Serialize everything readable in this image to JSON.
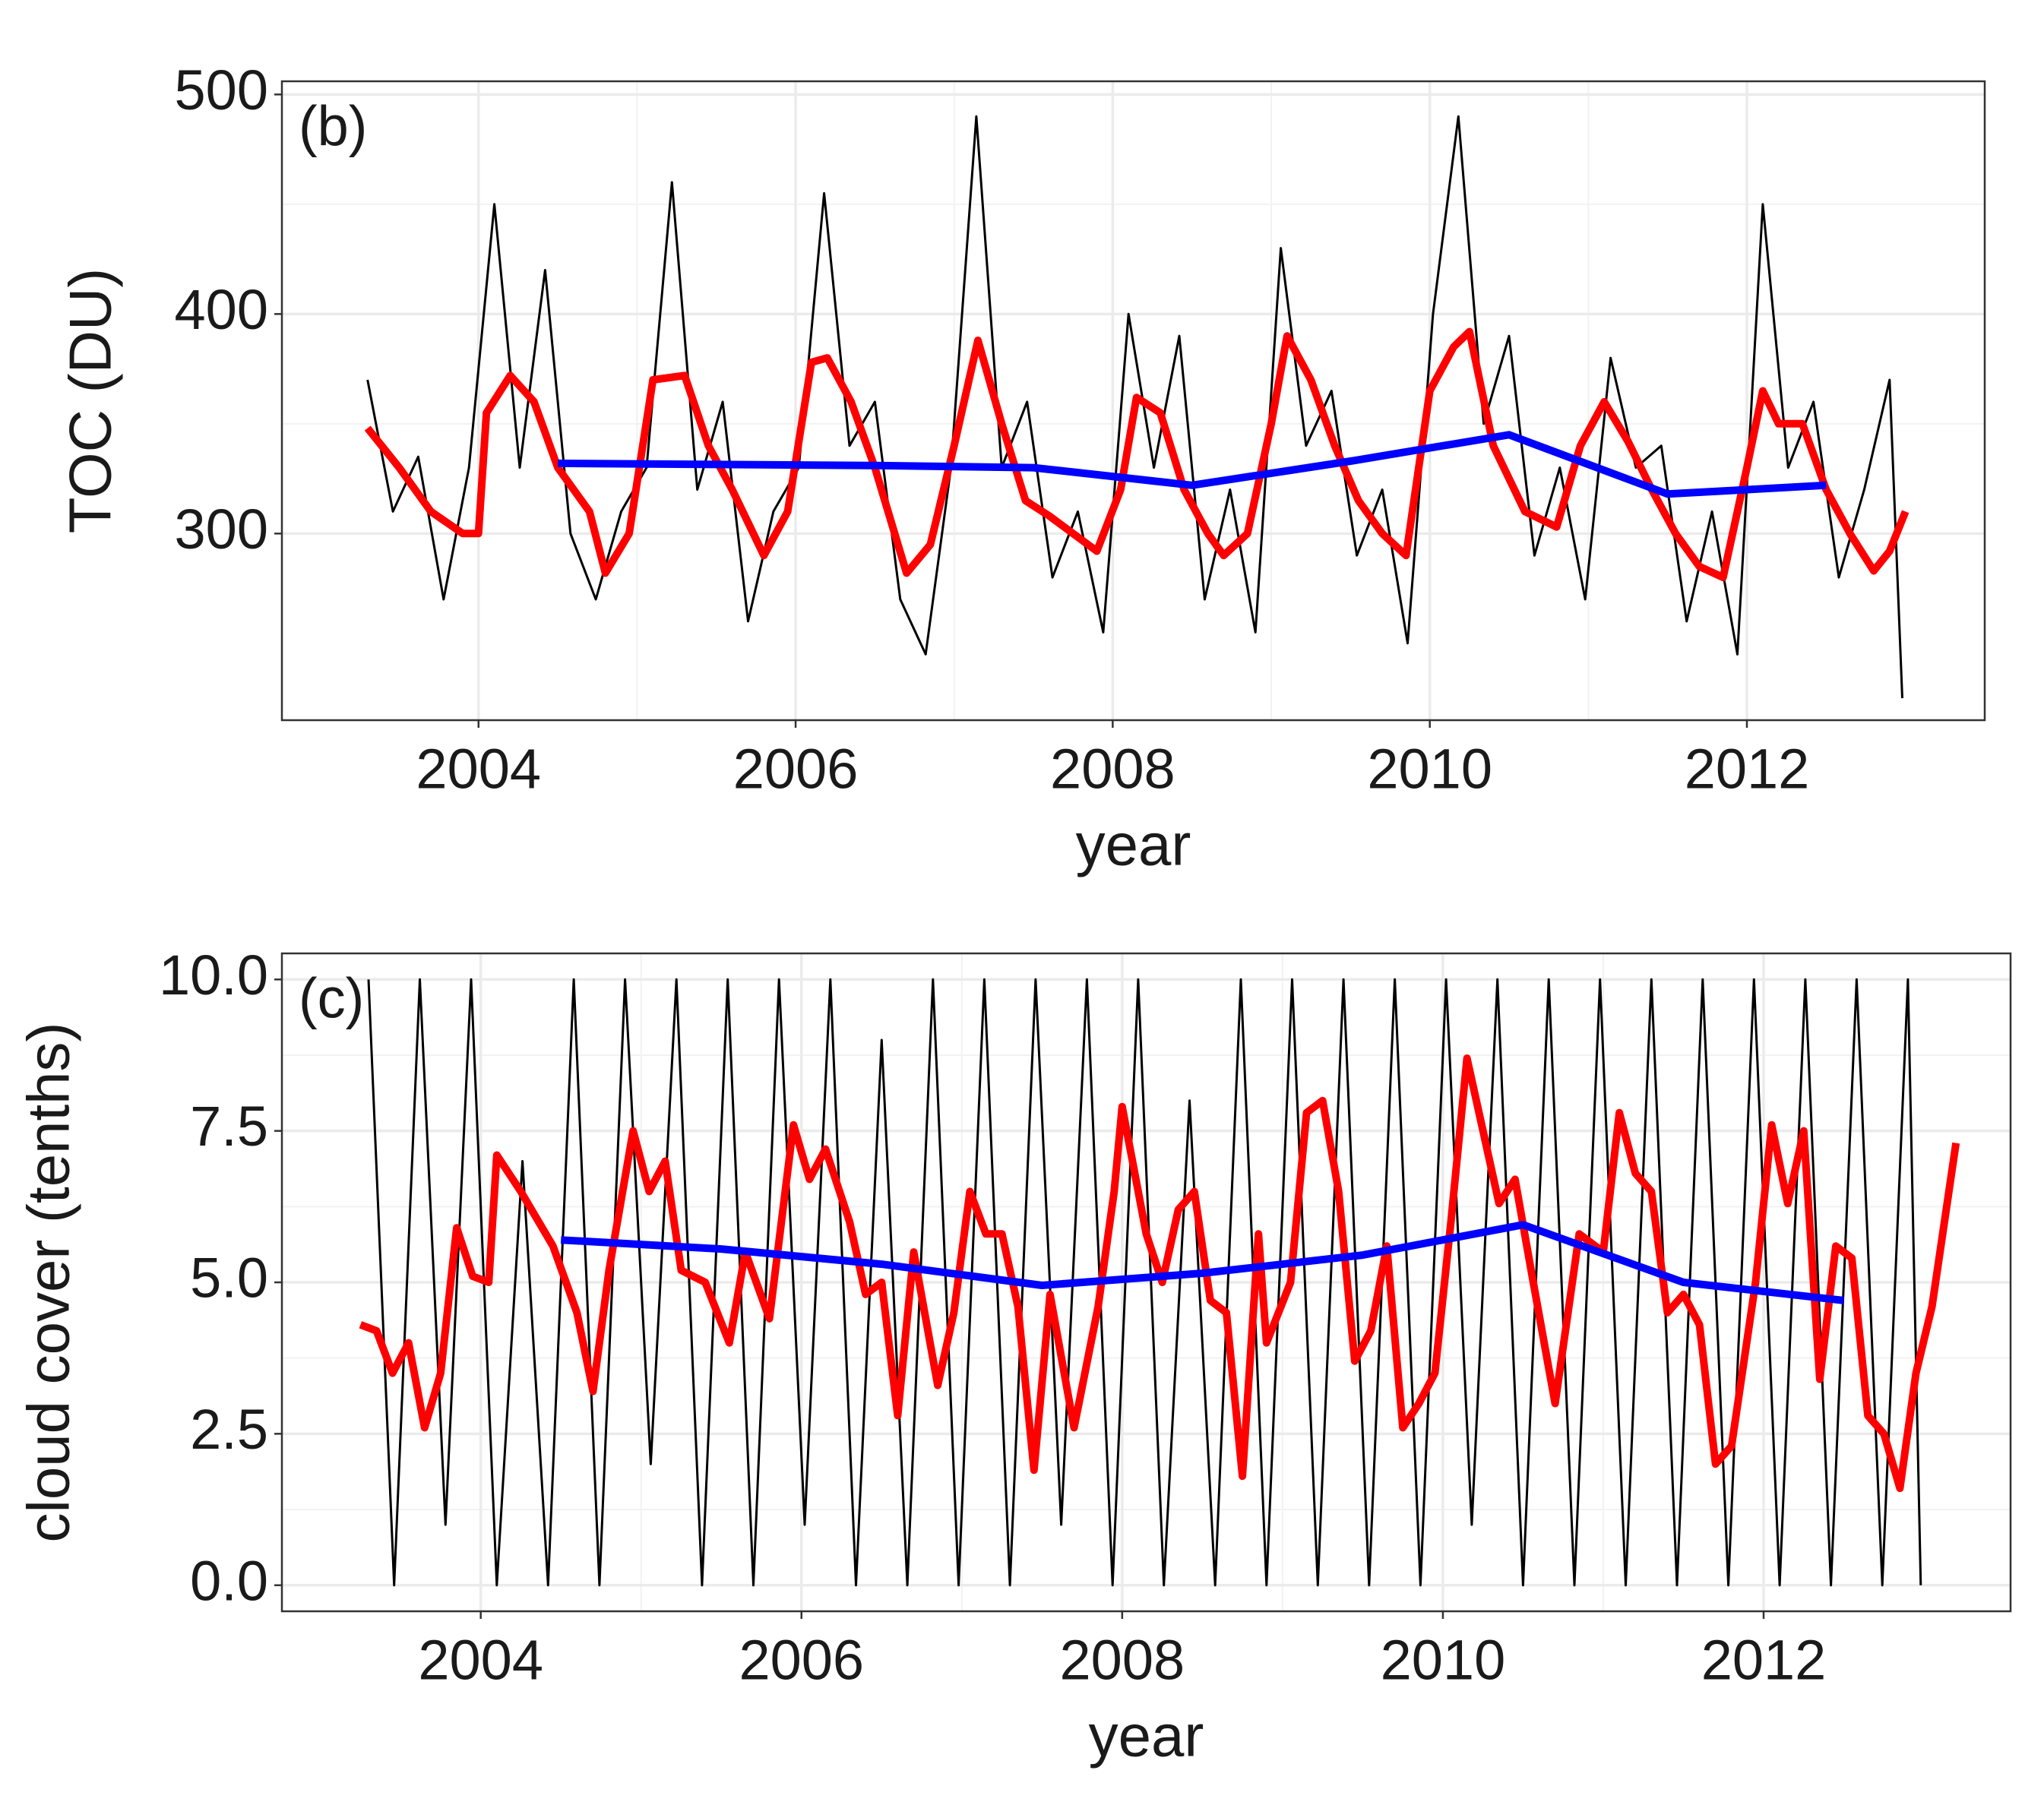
{
  "chart_data": [
    {
      "type": "line",
      "annotation": "(b)",
      "xlabel": "year",
      "ylabel": "TOC (DU)",
      "xlim": [
        2002.76,
        2013.5
      ],
      "xticks": [
        2004,
        2006,
        2008,
        2010,
        2012
      ],
      "ylim": [
        215,
        506
      ],
      "yticks": [
        300,
        400,
        500
      ],
      "grid": true,
      "series": [
        {
          "color": "#000000",
          "x": [
            2003.3,
            2003.46,
            2003.62,
            2003.78,
            2003.94,
            2004.1,
            2004.26,
            2004.42,
            2004.58,
            2004.74,
            2004.9,
            2005.06,
            2005.22,
            2005.38,
            2005.54,
            2005.7,
            2005.86,
            2006.02,
            2006.18,
            2006.34,
            2006.5,
            2006.66,
            2006.82,
            2006.98,
            2007.14,
            2007.3,
            2007.46,
            2007.62,
            2007.78,
            2007.94,
            2008.1,
            2008.26,
            2008.42,
            2008.58,
            2008.74,
            2008.9,
            2009.06,
            2009.22,
            2009.38,
            2009.54,
            2009.7,
            2009.86,
            2010.02,
            2010.18,
            2010.34,
            2010.5,
            2010.66,
            2010.82,
            2010.98,
            2011.14,
            2011.3,
            2011.46,
            2011.62,
            2011.78,
            2011.94,
            2012.1,
            2012.26,
            2012.42,
            2012.58,
            2012.74,
            2012.9,
            2012.98
          ],
          "values": [
            370,
            310,
            335,
            270,
            330,
            450,
            330,
            420,
            300,
            270,
            310,
            330,
            460,
            320,
            360,
            260,
            310,
            330,
            455,
            340,
            360,
            270,
            245,
            330,
            490,
            330,
            360,
            280,
            310,
            255,
            400,
            330,
            390,
            270,
            320,
            255,
            430,
            340,
            365,
            290,
            320,
            250,
            400,
            490,
            350,
            390,
            290,
            330,
            270,
            380,
            330,
            340,
            260,
            310,
            245,
            450,
            330,
            360,
            280,
            320,
            370,
            225
          ]
        },
        {
          "color": "#ff0000",
          "x": [
            2003.3,
            2003.5,
            2003.7,
            2003.9,
            2004.0,
            2004.05,
            2004.2,
            2004.35,
            2004.5,
            2004.7,
            2004.8,
            2004.95,
            2005.1,
            2005.3,
            2005.45,
            2005.6,
            2005.8,
            2005.95,
            2006.1,
            2006.2,
            2006.35,
            2006.5,
            2006.7,
            2006.85,
            2007.0,
            2007.15,
            2007.3,
            2007.45,
            2007.6,
            2007.75,
            2007.9,
            2008.05,
            2008.15,
            2008.3,
            2008.45,
            2008.6,
            2008.7,
            2008.85,
            2009.0,
            2009.1,
            2009.25,
            2009.4,
            2009.55,
            2009.7,
            2009.85,
            2010.0,
            2010.15,
            2010.25,
            2010.4,
            2010.6,
            2010.8,
            2010.95,
            2011.1,
            2011.25,
            2011.4,
            2011.55,
            2011.7,
            2011.85,
            2012.0,
            2012.1,
            2012.2,
            2012.35,
            2012.5,
            2012.65,
            2012.8,
            2012.9,
            2013.0
          ],
          "values": [
            348,
            330,
            310,
            300,
            300,
            355,
            372,
            360,
            330,
            310,
            282,
            300,
            370,
            372,
            340,
            320,
            290,
            310,
            378,
            380,
            360,
            330,
            282,
            295,
            340,
            388,
            350,
            315,
            308,
            300,
            292,
            320,
            362,
            355,
            320,
            300,
            290,
            300,
            350,
            390,
            370,
            340,
            315,
            300,
            290,
            365,
            385,
            392,
            340,
            310,
            303,
            340,
            360,
            342,
            320,
            300,
            285,
            280,
            330,
            365,
            350,
            350,
            320,
            300,
            283,
            292,
            310
          ]
        },
        {
          "color": "#0000ff",
          "x": [
            2004.5,
            2006.5,
            2007.5,
            2008.5,
            2009.5,
            2010.5,
            2011.5,
            2012.5
          ],
          "values": [
            332,
            331,
            330,
            322,
            333,
            345,
            318,
            322
          ]
        }
      ]
    },
    {
      "type": "line",
      "annotation": "(c)",
      "xlabel": "year",
      "ylabel": "cloud cover (tenths)",
      "xlim": [
        2002.76,
        2013.54
      ],
      "xticks": [
        2004,
        2006,
        2008,
        2010,
        2012
      ],
      "ylim": [
        -0.43,
        10.43
      ],
      "yticks": [
        {
          "value": 0,
          "label": "0.0"
        },
        {
          "value": 2.5,
          "label": "2.5"
        },
        {
          "value": 5,
          "label": "5.0"
        },
        {
          "value": 7.5,
          "label": "7.5"
        },
        {
          "value": 10,
          "label": "10.0"
        }
      ],
      "grid": true,
      "series": [
        {
          "color": "#000000",
          "x": [
            2003.3,
            2003.46,
            2003.62,
            2003.78,
            2003.94,
            2004.1,
            2004.26,
            2004.42,
            2004.58,
            2004.74,
            2004.9,
            2005.06,
            2005.22,
            2005.38,
            2005.54,
            2005.7,
            2005.86,
            2006.02,
            2006.18,
            2006.34,
            2006.5,
            2006.66,
            2006.82,
            2006.98,
            2007.14,
            2007.3,
            2007.46,
            2007.62,
            2007.78,
            2007.94,
            2008.1,
            2008.26,
            2008.42,
            2008.58,
            2008.74,
            2008.9,
            2009.06,
            2009.22,
            2009.38,
            2009.54,
            2009.7,
            2009.86,
            2010.02,
            2010.18,
            2010.34,
            2010.5,
            2010.66,
            2010.82,
            2010.98,
            2011.14,
            2011.3,
            2011.46,
            2011.62,
            2011.78,
            2011.94,
            2012.1,
            2012.26,
            2012.42,
            2012.58,
            2012.74,
            2012.9,
            2012.98
          ],
          "values": [
            10,
            0,
            10,
            1,
            10,
            0,
            7,
            0,
            10,
            0,
            10,
            2,
            10,
            0,
            10,
            0,
            10,
            1,
            10,
            0,
            9,
            0,
            10,
            0,
            10,
            0,
            10,
            1,
            10,
            0,
            10,
            0,
            8,
            0,
            10,
            0,
            10,
            0,
            10,
            0,
            10,
            0,
            10,
            1,
            10,
            0,
            10,
            0,
            10,
            0,
            10,
            0,
            10,
            0,
            10,
            0,
            10,
            0,
            10,
            0,
            10,
            0
          ]
        },
        {
          "color": "#ff0000",
          "x": [
            2003.25,
            2003.35,
            2003.45,
            2003.55,
            2003.65,
            2003.75,
            2003.85,
            2003.95,
            2004.05,
            2004.1,
            2004.25,
            2004.45,
            2004.6,
            2004.7,
            2004.8,
            2004.95,
            2005.05,
            2005.15,
            2005.25,
            2005.4,
            2005.55,
            2005.65,
            2005.8,
            2005.95,
            2006.05,
            2006.15,
            2006.3,
            2006.4,
            2006.5,
            2006.6,
            2006.7,
            2006.85,
            2006.95,
            2007.05,
            2007.15,
            2007.25,
            2007.35,
            2007.45,
            2007.55,
            2007.7,
            2007.85,
            2007.95,
            2008.0,
            2008.15,
            2008.25,
            2008.35,
            2008.45,
            2008.55,
            2008.65,
            2008.75,
            2008.85,
            2008.9,
            2009.05,
            2009.15,
            2009.25,
            2009.35,
            2009.45,
            2009.55,
            2009.65,
            2009.75,
            2009.85,
            2009.95,
            2010.05,
            2010.15,
            2010.25,
            2010.35,
            2010.45,
            2010.55,
            2010.7,
            2010.85,
            2011.0,
            2011.1,
            2011.2,
            2011.3,
            2011.4,
            2011.5,
            2011.6,
            2011.7,
            2011.8,
            2011.95,
            2012.05,
            2012.15,
            2012.25,
            2012.35,
            2012.45,
            2012.55,
            2012.65,
            2012.75,
            2012.85,
            2012.95,
            2013.05,
            2013.2
          ],
          "values": [
            4.3,
            4.2,
            3.5,
            4.0,
            2.6,
            3.5,
            5.9,
            5.1,
            5.0,
            7.1,
            6.5,
            5.6,
            4.5,
            3.2,
            5.2,
            7.5,
            6.5,
            7.0,
            5.2,
            5.0,
            4.0,
            5.5,
            4.4,
            7.6,
            6.7,
            7.2,
            6.0,
            4.8,
            5.0,
            2.8,
            5.5,
            3.3,
            4.5,
            6.5,
            5.8,
            5.8,
            4.6,
            1.9,
            4.8,
            2.6,
            4.6,
            6.5,
            7.9,
            5.8,
            5.0,
            6.2,
            6.5,
            4.7,
            4.5,
            1.8,
            5.8,
            4.0,
            5.0,
            7.8,
            8.0,
            6.5,
            3.7,
            4.2,
            5.6,
            2.6,
            3.0,
            3.5,
            6.0,
            8.7,
            7.5,
            6.3,
            6.7,
            5.2,
            3.0,
            5.8,
            5.5,
            7.8,
            6.8,
            6.5,
            4.5,
            4.8,
            4.3,
            2.0,
            2.3,
            5.0,
            7.6,
            6.3,
            7.5,
            3.4,
            5.6,
            5.4,
            2.8,
            2.5,
            1.6,
            3.5,
            4.6,
            7.3
          ]
        },
        {
          "color": "#0000ff",
          "x": [
            2004.5,
            2005.5,
            2006.5,
            2007.5,
            2008.5,
            2009.5,
            2010.5,
            2011.5,
            2012.5
          ],
          "values": [
            5.7,
            5.55,
            5.3,
            4.95,
            5.15,
            5.45,
            5.95,
            5.0,
            4.7
          ]
        }
      ]
    }
  ]
}
